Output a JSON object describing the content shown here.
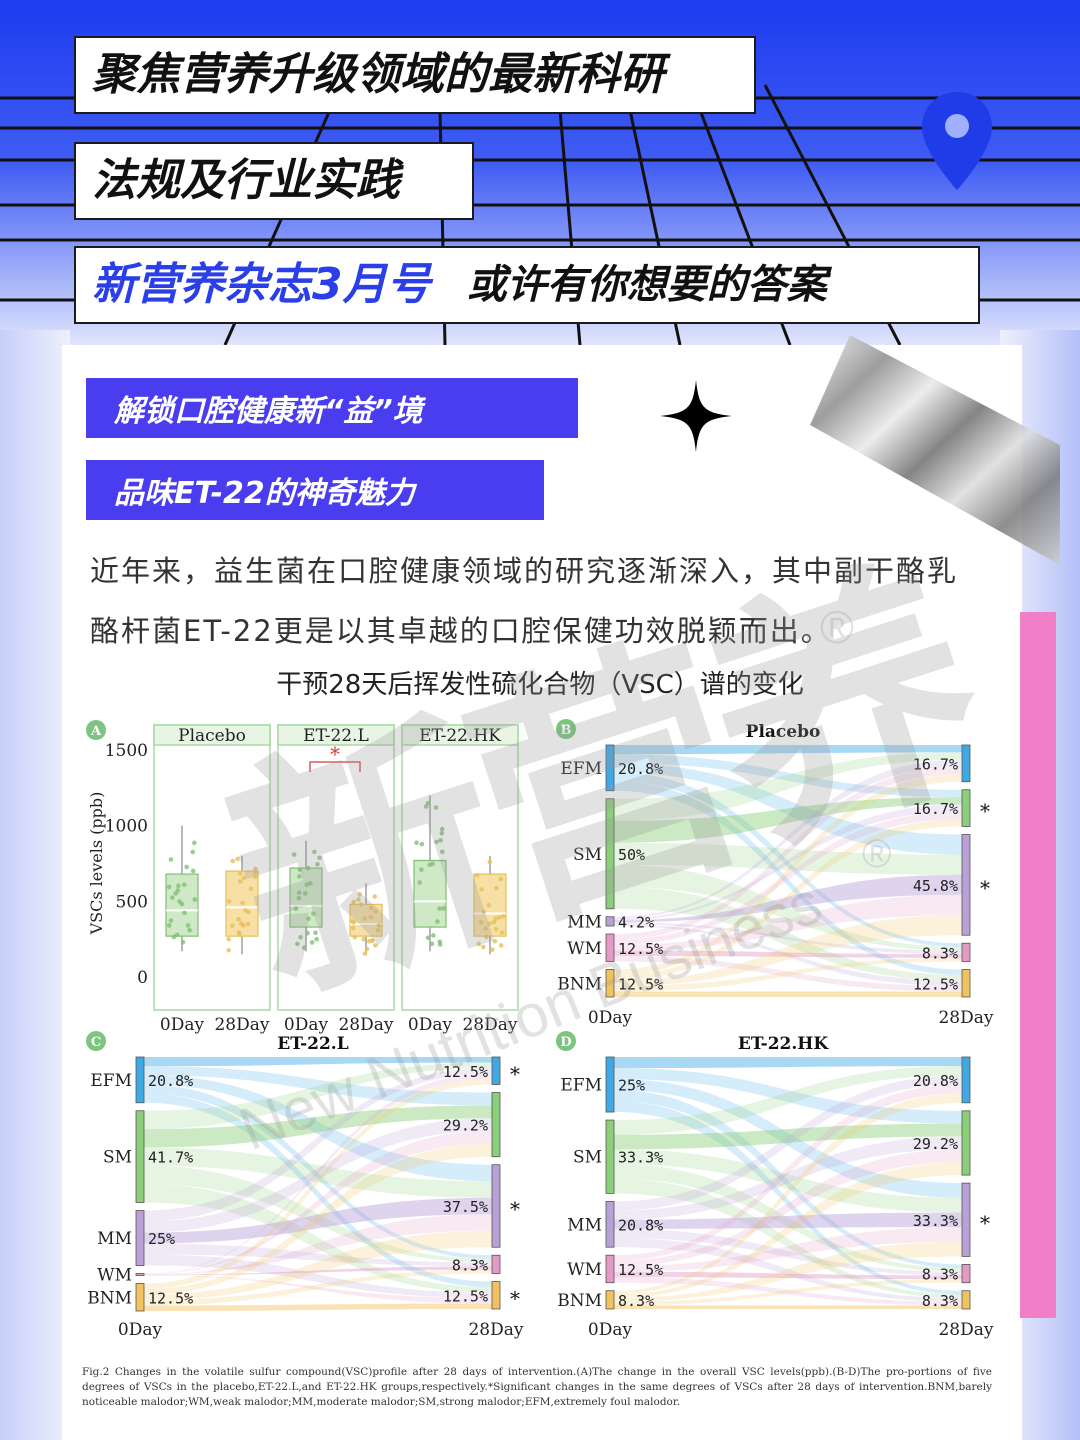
{
  "header": {
    "line1": "聚焦营养升级领域的最新科研",
    "line2": "法规及行业实践",
    "line3_blue": "新营养杂志3月号",
    "line3_black": "或许有你想要的答案"
  },
  "tags": {
    "tag1": "解锁口腔健康新“益”境",
    "tag2": "品味ET-22的神奇魅力"
  },
  "intro": {
    "line1": "近年来，益生菌在口腔健康领域的研究逐渐深入，其中副干酪乳",
    "line2": "酪杆菌ET-22更是以其卓越的口腔保健功效脱颖而出。"
  },
  "figure_title": "干预28天后挥发性硫化合物（VSC）谱的变化",
  "icons": {
    "pin": "location-pin-icon",
    "star": "sparkle-star-icon",
    "foil": "foil-tape-decoration"
  },
  "colors": {
    "header_blue": "#1e3cf0",
    "tag_purple": "#4a3df0",
    "accent_pink": "#f07fc8",
    "EFM": "#3fa9e6",
    "SM": "#8ccf7a",
    "MM": "#b9a0d6",
    "WM": "#e39bc6",
    "BNM": "#f2c25e"
  },
  "chart_data": [
    {
      "type": "box",
      "panel_letter": "A",
      "ylabel": "VSCs levels (ppb)",
      "yticks": [
        "1500",
        "1000",
        "500",
        "0"
      ],
      "ylim": [
        0,
        1500
      ],
      "significance_mark": "*",
      "groups": [
        {
          "name": "Placebo",
          "boxes": [
            {
              "x": "0Day",
              "min": 170,
              "q1": 270,
              "median": 440,
              "q3": 680,
              "max": 1000
            },
            {
              "x": "28Day",
              "min": 150,
              "q1": 270,
              "median": 460,
              "q3": 700,
              "max": 800
            }
          ]
        },
        {
          "name": "ET-22.L",
          "boxes": [
            {
              "x": "0Day",
              "min": 170,
              "q1": 330,
              "median": 470,
              "q3": 720,
              "max": 900
            },
            {
              "x": "28Day",
              "min": 150,
              "q1": 270,
              "median": 350,
              "q3": 480,
              "max": 620
            }
          ]
        },
        {
          "name": "ET-22.HK",
          "boxes": [
            {
              "x": "0Day",
              "min": 170,
              "q1": 330,
              "median": 500,
              "q3": 770,
              "max": 1200
            },
            {
              "x": "28Day",
              "min": 150,
              "q1": 270,
              "median": 420,
              "q3": 680,
              "max": 800
            }
          ]
        }
      ]
    },
    {
      "type": "alluvial",
      "panel_letter": "B",
      "title": "Placebo",
      "x": [
        "0Day",
        "28Day"
      ],
      "left": [
        {
          "label": "EFM",
          "value": "20.8%"
        },
        {
          "label": "SM",
          "value": "50%"
        },
        {
          "label": "MM",
          "value": "4.2%"
        },
        {
          "label": "WM",
          "value": "12.5%"
        },
        {
          "label": "BNM",
          "value": "12.5%"
        }
      ],
      "right": [
        {
          "label": "EFM",
          "value": "16.7%",
          "sig": ""
        },
        {
          "label": "SM",
          "value": "16.7%",
          "sig": "*"
        },
        {
          "label": "MM",
          "value": "45.8%",
          "sig": "*"
        },
        {
          "label": "WM",
          "value": "8.3%",
          "sig": ""
        },
        {
          "label": "BNM",
          "value": "12.5%",
          "sig": ""
        }
      ]
    },
    {
      "type": "alluvial",
      "panel_letter": "C",
      "title": "ET-22.L",
      "x": [
        "0Day",
        "28Day"
      ],
      "left": [
        {
          "label": "EFM",
          "value": "20.8%"
        },
        {
          "label": "SM",
          "value": "41.7%"
        },
        {
          "label": "MM",
          "value": "25%"
        },
        {
          "label": "WM",
          "value": ""
        },
        {
          "label": "BNM",
          "value": "12.5%"
        }
      ],
      "right": [
        {
          "label": "EFM",
          "value": "12.5%",
          "sig": "*"
        },
        {
          "label": "SM",
          "value": "29.2%",
          "sig": ""
        },
        {
          "label": "MM",
          "value": "37.5%",
          "sig": "*"
        },
        {
          "label": "WM",
          "value": "8.3%",
          "sig": ""
        },
        {
          "label": "BNM",
          "value": "12.5%",
          "sig": "*"
        }
      ]
    },
    {
      "type": "alluvial",
      "panel_letter": "D",
      "title": "ET-22.HK",
      "x": [
        "0Day",
        "28Day"
      ],
      "left": [
        {
          "label": "EFM",
          "value": "25%"
        },
        {
          "label": "SM",
          "value": "33.3%"
        },
        {
          "label": "MM",
          "value": "20.8%"
        },
        {
          "label": "WM",
          "value": "12.5%"
        },
        {
          "label": "BNM",
          "value": "8.3%"
        }
      ],
      "right": [
        {
          "label": "EFM",
          "value": "20.8%",
          "sig": ""
        },
        {
          "label": "SM",
          "value": "29.2%",
          "sig": ""
        },
        {
          "label": "MM",
          "value": "33.3%",
          "sig": "*"
        },
        {
          "label": "WM",
          "value": "8.3%",
          "sig": ""
        },
        {
          "label": "BNM",
          "value": "8.3%",
          "sig": ""
        }
      ]
    }
  ],
  "caption": "Fig.2 Changes in the volatile sulfur compound(VSC)profile after 28 days of intervention.(A)The change in the overall VSC levels(ppb).(B-D)The pro-portions of five degrees of VSCs in the placebo,ET-22.L,and ET-22.HK groups,respectively.*Significant changes in the same degrees of VSCs after 28 days of intervention.BNM,barely noticeable malodor;WM,weak malodor;MM,moderate malodor;SM,strong malodor;EFM,extremely foul malodor.",
  "watermark": {
    "cn": "新营养",
    "en": "New Nutrition Business",
    "reg": "®"
  }
}
